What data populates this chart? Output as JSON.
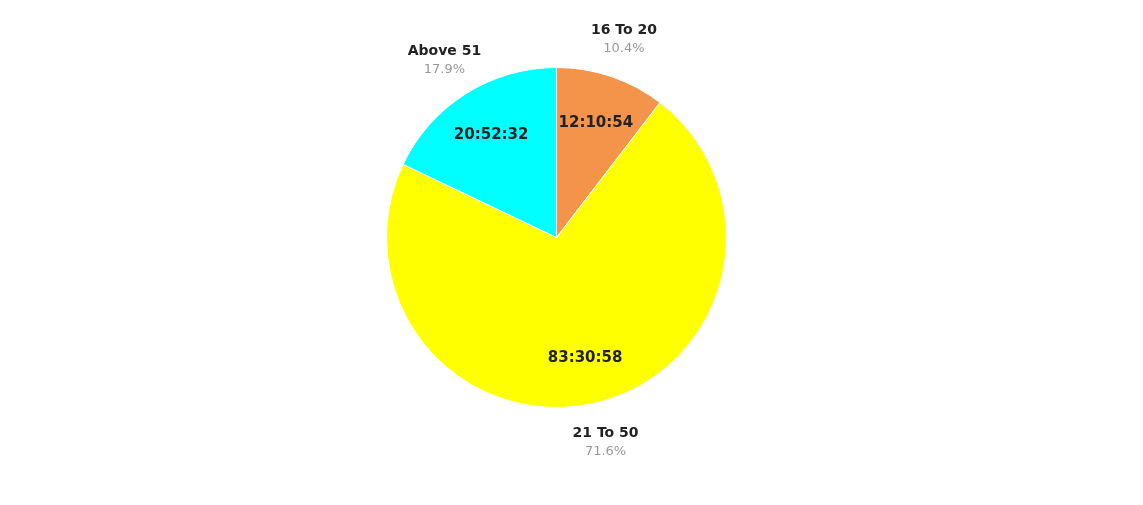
{
  "chart_data": {
    "type": "pie",
    "categories": [
      "16 To 20",
      "21 To 50",
      "Above 51"
    ],
    "values": [
      10.4,
      71.6,
      17.9
    ],
    "colors": [
      "#f4934a",
      "#ffff00",
      "#00ffff"
    ],
    "value_labels": [
      "10.4%",
      "71.6%",
      "17.9%"
    ],
    "annotations": [
      {
        "text": "12:10:54",
        "x": "16 To 20"
      },
      {
        "text": "83:30:58",
        "x": "21 To 50"
      },
      {
        "text": "20:52:32",
        "x": "Above 51"
      }
    ],
    "legend": false
  }
}
